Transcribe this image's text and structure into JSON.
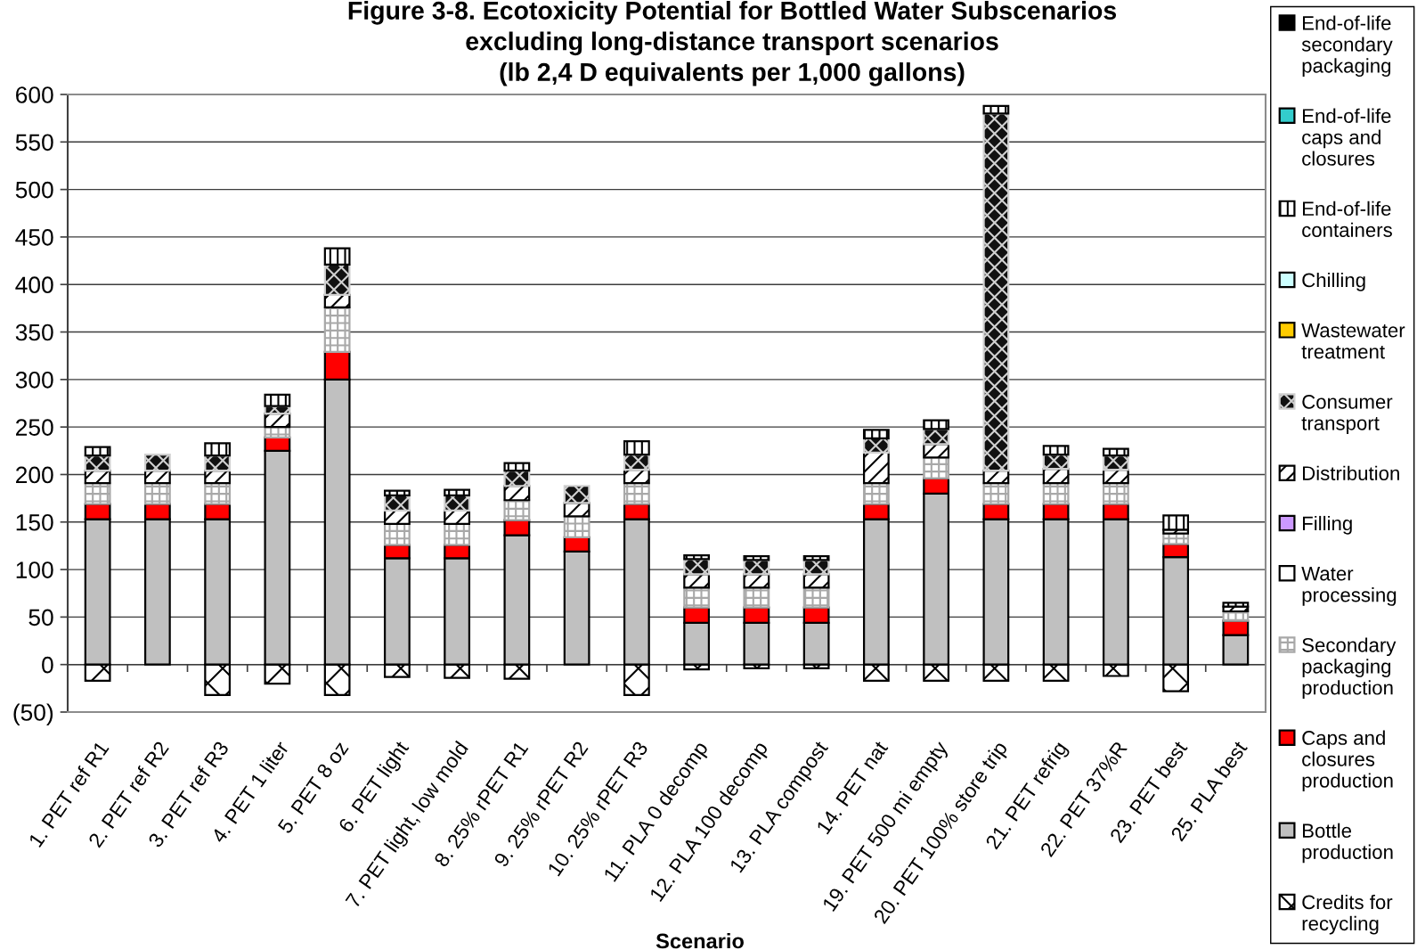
{
  "chart_data": {
    "type": "bar",
    "title": "Figure 3-8. Ecotoxicity Potential for Bottled Water Subscenarios\nexcluding long-distance transport scenarios\n(lb 2,4 D equivalents per 1,000 gallons)",
    "xlabel": "Scenario",
    "categories": [
      "1. PET ref R1",
      "2. PET ref R2",
      "3. PET ref R3",
      "4. PET 1 liter",
      "5. PET 8 oz",
      "6. PET light",
      "7. PET light, low mold",
      "8. 25% rPET R1",
      "9. 25% rPET R2",
      "10. 25% rPET R3",
      "11. PLA 0 decomp",
      "12. PLA 100 decomp",
      "13. PLA compost",
      "14. PET nat",
      "19. PET 500 mi empty",
      "20. PET 100% store trip",
      "21. PET refrig",
      "22. PET 37%R",
      "23. PET best",
      "25. PLA best"
    ],
    "stacked": true,
    "ylim": [
      -50,
      600
    ],
    "yticks": [
      {
        "value": -50,
        "label": "(50)"
      },
      0,
      50,
      100,
      150,
      200,
      250,
      300,
      350,
      400,
      450,
      500,
      550,
      600
    ],
    "grid": "y",
    "legend": "right",
    "series": [
      {
        "name": "Credits for recycling",
        "color": "#000000",
        "values": [
          -17,
          null,
          -32,
          -20,
          -32,
          -13,
          -14,
          -15,
          null,
          -32,
          -5,
          -4,
          -4,
          -17,
          -17,
          -17,
          -17,
          -12,
          -28,
          null
        ]
      },
      {
        "name": "Bottle production",
        "color": "#c0c0c0",
        "values": [
          153,
          153,
          153,
          225,
          300,
          112,
          112,
          136,
          119,
          153,
          44,
          44,
          44,
          153,
          180,
          153,
          153,
          153,
          113,
          31
        ]
      },
      {
        "name": "Caps and closures production",
        "color": "#ff0000",
        "values": [
          16,
          16,
          16,
          14,
          29,
          14,
          14,
          16,
          15,
          16,
          16,
          16,
          16,
          16,
          16,
          16,
          16,
          16,
          14,
          15
        ]
      },
      {
        "name": "Secondary packaging production",
        "color": "#a8a8a8",
        "values": [
          22,
          22,
          22,
          11,
          47,
          22,
          22,
          21,
          22,
          22,
          21,
          21,
          21,
          22,
          22,
          22,
          22,
          22,
          11,
          10
        ]
      },
      {
        "name": "Water processing",
        "color": "#ffffff",
        "values": [
          null,
          null,
          null,
          null,
          null,
          null,
          null,
          null,
          null,
          null,
          null,
          null,
          null,
          null,
          null,
          null,
          null,
          null,
          null,
          null
        ]
      },
      {
        "name": "Filling",
        "color": "#cc99ff",
        "values": [
          null,
          null,
          null,
          null,
          null,
          null,
          null,
          null,
          null,
          null,
          null,
          null,
          null,
          null,
          null,
          null,
          null,
          null,
          null,
          null
        ]
      },
      {
        "name": "Distribution",
        "color": "#000000",
        "values": [
          13,
          13,
          13,
          14,
          13,
          14,
          14,
          15,
          14,
          14,
          14,
          14,
          14,
          32,
          14,
          13,
          15,
          14,
          4,
          5
        ]
      },
      {
        "name": "Consumer transport",
        "color": "#d0d0d0",
        "values": [
          16,
          17,
          16,
          8,
          32,
          16,
          16,
          16,
          18,
          16,
          16,
          15,
          15,
          15,
          16,
          376,
          15,
          15,
          null,
          null
        ]
      },
      {
        "name": "Wastewater treatment",
        "color": "#ffcc00",
        "values": [
          null,
          null,
          null,
          null,
          null,
          null,
          null,
          null,
          null,
          null,
          null,
          null,
          null,
          null,
          null,
          null,
          null,
          null,
          null,
          null
        ]
      },
      {
        "name": "Chilling",
        "color": "#ccffff",
        "values": [
          null,
          null,
          null,
          null,
          null,
          null,
          null,
          null,
          null,
          null,
          null,
          null,
          null,
          null,
          null,
          null,
          null,
          null,
          null,
          null
        ]
      },
      {
        "name": "End-of-life containers",
        "color": "#000000",
        "values": [
          9,
          null,
          13,
          12,
          17,
          5,
          6,
          8,
          null,
          14,
          4,
          4,
          4,
          9,
          9,
          8,
          9,
          7,
          15,
          4
        ]
      },
      {
        "name": "End-of-life caps and closures",
        "color": "#33cccc",
        "values": [
          null,
          null,
          null,
          null,
          null,
          null,
          null,
          null,
          null,
          null,
          null,
          null,
          null,
          null,
          null,
          null,
          null,
          null,
          null,
          null
        ]
      },
      {
        "name": "End-of-life secondary packaging",
        "color": "#000000",
        "values": [
          null,
          null,
          null,
          null,
          null,
          null,
          null,
          null,
          null,
          null,
          null,
          null,
          null,
          null,
          null,
          null,
          null,
          null,
          null,
          null
        ]
      }
    ]
  }
}
